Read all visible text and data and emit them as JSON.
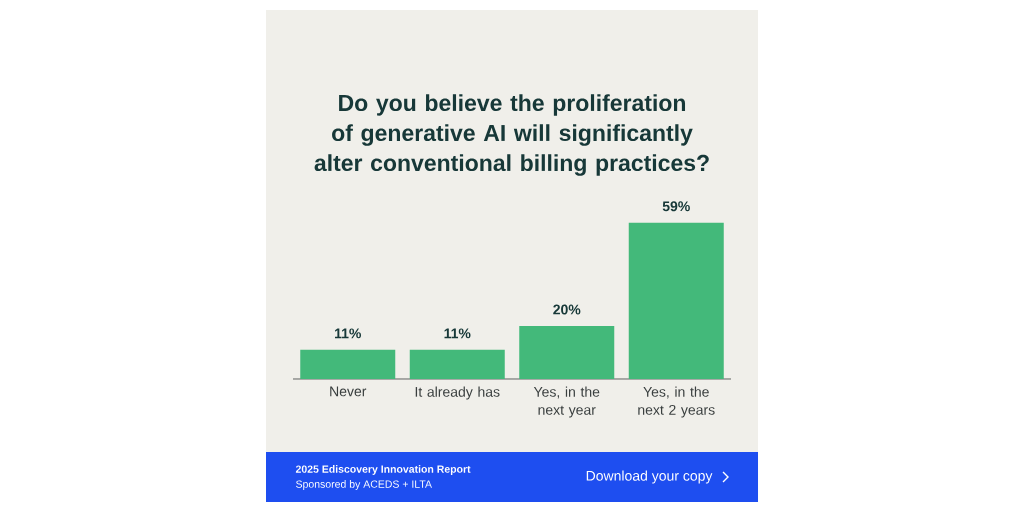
{
  "chart_data": {
    "type": "bar",
    "title": "Do you believe the proliferation of generative AI will significantly alter conventional billing practices?",
    "categories": [
      "Never",
      "It already has",
      "Yes, in the next year",
      "Yes, in the next 2 years"
    ],
    "values": [
      11,
      11,
      20,
      59
    ],
    "value_labels": [
      "11%",
      "11%",
      "20%",
      "59%"
    ],
    "color": "#43b97a",
    "annotations": [
      "2025 Ediscovery Innovation Report",
      "Sponsored by ACEDS + ILTA",
      "Download your copy"
    ]
  }
}
